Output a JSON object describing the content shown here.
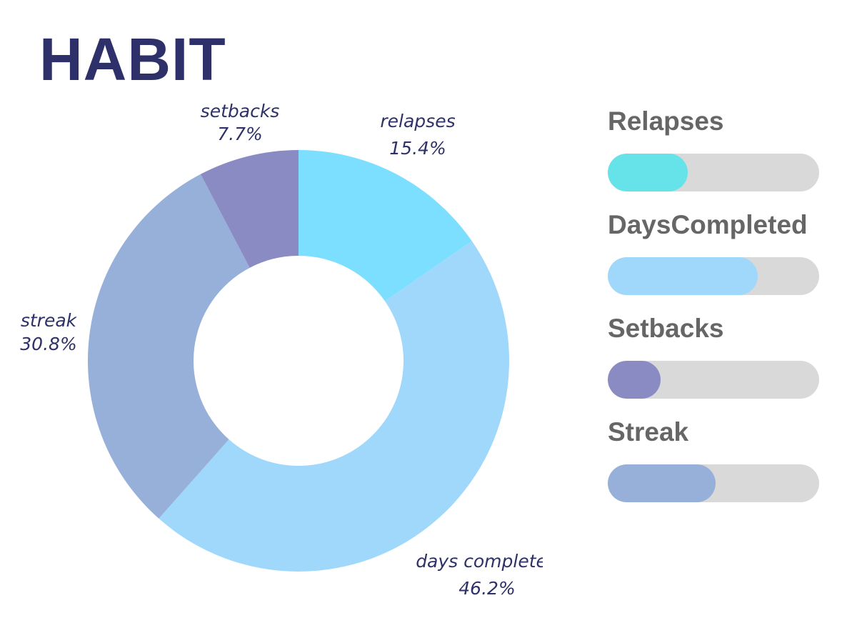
{
  "title": "HABIT",
  "colors": {
    "title": "#2e3169",
    "slice_label": "#2e3169",
    "bar_label": "#666666",
    "track": "#d9d9d9"
  },
  "chart_data": [
    {
      "type": "pie",
      "donut": true,
      "slices": [
        {
          "label": "relapses",
          "value": 15.4,
          "value_text": "15.4%",
          "color": "#7ddfff"
        },
        {
          "label": "days completed",
          "value": 46.2,
          "value_text": "46.2%",
          "color": "#9fd8fb"
        },
        {
          "label": "streak",
          "value": 30.8,
          "value_text": "30.8%",
          "color": "#97b0d9"
        },
        {
          "label": "setbacks",
          "value": 7.7,
          "value_text": "7.7%",
          "color": "#8b8bc3"
        }
      ]
    },
    {
      "type": "bar",
      "orientation": "horizontal",
      "items": [
        {
          "label": "Relapses",
          "fraction": 0.38,
          "color": "#66e3e8"
        },
        {
          "label": "DaysCompleted",
          "fraction": 0.71,
          "color": "#9fd8fb"
        },
        {
          "label": "Setbacks",
          "fraction": 0.25,
          "color": "#8b8bc3"
        },
        {
          "label": "Streak",
          "fraction": 0.51,
          "color": "#97b0d9"
        }
      ]
    }
  ]
}
